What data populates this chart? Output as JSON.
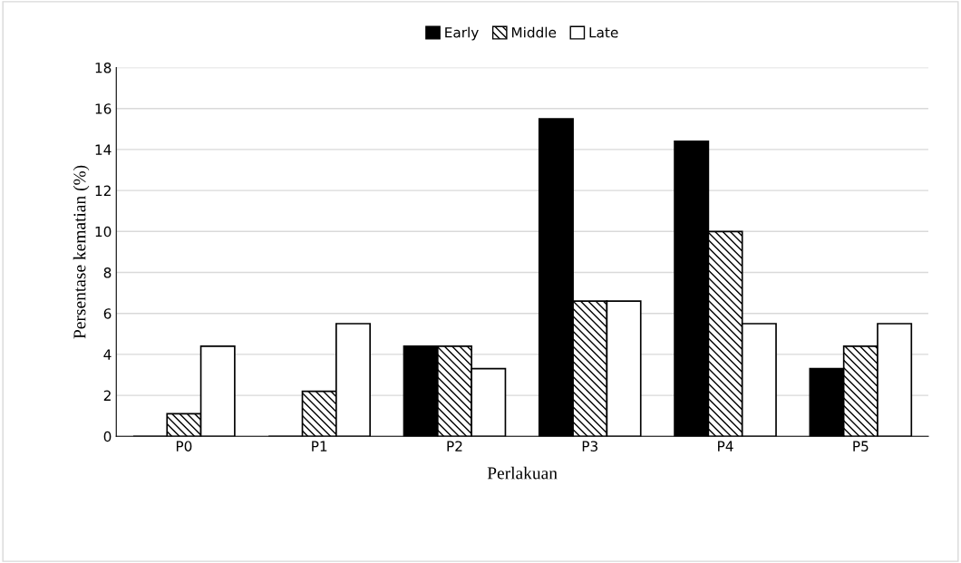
{
  "chart_data": {
    "type": "bar",
    "xlabel": "Perlakuan",
    "ylabel": "Persentase kematian (%)",
    "categories": [
      "P0",
      "P1",
      "P2",
      "P3",
      "P4",
      "P5"
    ],
    "series": [
      {
        "name": "Early",
        "color": "#000000",
        "values": [
          0,
          0,
          4.4,
          15.5,
          14.4,
          3.3
        ]
      },
      {
        "name": "Middle",
        "color": "#000000",
        "values": [
          1.1,
          2.2,
          4.4,
          6.6,
          10,
          4.4
        ]
      },
      {
        "name": "Late",
        "color": "#ffffff",
        "values": [
          4.4,
          5.5,
          3.3,
          6.6,
          5.5,
          5.5
        ]
      }
    ],
    "ylim": [
      0,
      18
    ],
    "yticks": [
      0,
      2,
      4,
      6,
      8,
      10,
      12,
      14,
      16,
      18
    ],
    "grid": "y",
    "legend": "top"
  }
}
